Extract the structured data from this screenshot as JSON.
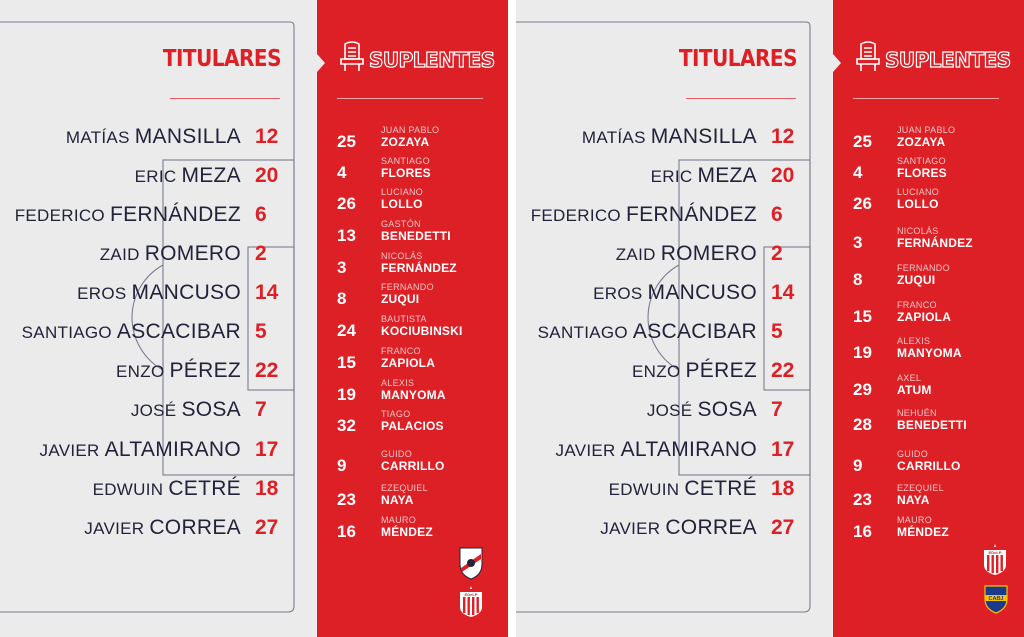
{
  "panels": [
    {
      "titulares_title": "TITULARES",
      "suplentes_title": "SUPLENTES",
      "starters": [
        {
          "first": "MATÍAS",
          "last": "MANSILLA",
          "number": "12"
        },
        {
          "first": "ERIC",
          "last": "MEZA",
          "number": "20"
        },
        {
          "first": "FEDERICO",
          "last": "FERNÁNDEZ",
          "number": "6"
        },
        {
          "first": "ZAID",
          "last": "ROMERO",
          "number": "2"
        },
        {
          "first": "EROS",
          "last": "MANCUSO",
          "number": "14"
        },
        {
          "first": "SANTIAGO",
          "last": "ASCACIBAR",
          "number": "5"
        },
        {
          "first": "ENZO",
          "last": "PÉREZ",
          "number": "22"
        },
        {
          "first": "JOSÉ",
          "last": "SOSA",
          "number": "7"
        },
        {
          "first": "JAVIER",
          "last": "ALTAMIRANO",
          "number": "17"
        },
        {
          "first": "EDWUIN",
          "last": "CETRÉ",
          "number": "18"
        },
        {
          "first": "JAVIER",
          "last": "CORREA",
          "number": "27"
        }
      ],
      "subs": [
        {
          "number": "25",
          "first": "JUAN PABLO",
          "last": "ZOZAYA"
        },
        {
          "number": "4",
          "first": "SANTIAGO",
          "last": "FLORES"
        },
        {
          "number": "26",
          "first": "LUCIANO",
          "last": "LOLLO"
        },
        {
          "number": "13",
          "first": "GASTÓN",
          "last": "BENEDETTI"
        },
        {
          "number": "3",
          "first": "NICOLÁS",
          "last": "FERNÁNDEZ"
        },
        {
          "number": "8",
          "first": "FERNANDO",
          "last": "ZUQUI"
        },
        {
          "number": "24",
          "first": "BAUTISTA",
          "last": "KOCIUBINSKI"
        },
        {
          "number": "15",
          "first": "FRANCO",
          "last": "ZAPIOLA"
        },
        {
          "number": "19",
          "first": "ALEXIS",
          "last": "MANYOMA"
        },
        {
          "number": "32",
          "first": "TIAGO",
          "last": "PALACIOS"
        },
        {
          "number": "9",
          "first": "GUIDO",
          "last": "CARRILLO"
        },
        {
          "number": "23",
          "first": "EZEQUIEL",
          "last": "NAYA"
        },
        {
          "number": "16",
          "first": "MAURO",
          "last": "MÉNDEZ"
        }
      ],
      "crests": [
        {
          "kind": "river-plate-crest"
        },
        {
          "kind": "estudiantes-crest",
          "text": "EDeLP"
        }
      ]
    },
    {
      "titulares_title": "TITULARES",
      "suplentes_title": "SUPLENTES",
      "starters": [
        {
          "first": "MATÍAS",
          "last": "MANSILLA",
          "number": "12"
        },
        {
          "first": "ERIC",
          "last": "MEZA",
          "number": "20"
        },
        {
          "first": "FEDERICO",
          "last": "FERNÁNDEZ",
          "number": "6"
        },
        {
          "first": "ZAID",
          "last": "ROMERO",
          "number": "2"
        },
        {
          "first": "EROS",
          "last": "MANCUSO",
          "number": "14"
        },
        {
          "first": "SANTIAGO",
          "last": "ASCACIBAR",
          "number": "5"
        },
        {
          "first": "ENZO",
          "last": "PÉREZ",
          "number": "22"
        },
        {
          "first": "JOSÉ",
          "last": "SOSA",
          "number": "7"
        },
        {
          "first": "JAVIER",
          "last": "ALTAMIRANO",
          "number": "17"
        },
        {
          "first": "EDWUIN",
          "last": "CETRÉ",
          "number": "18"
        },
        {
          "first": "JAVIER",
          "last": "CORREA",
          "number": "27"
        }
      ],
      "subs": [
        {
          "number": "25",
          "first": "JUAN PABLO",
          "last": "ZOZAYA"
        },
        {
          "number": "4",
          "first": "SANTIAGO",
          "last": "FLORES"
        },
        {
          "number": "26",
          "first": "LUCIANO",
          "last": "LOLLO"
        },
        {
          "number": "3",
          "first": "NICOLÁS",
          "last": "FERNÁNDEZ"
        },
        {
          "number": "8",
          "first": "FERNANDO",
          "last": "ZUQUI"
        },
        {
          "number": "15",
          "first": "FRANCO",
          "last": "ZAPIOLA"
        },
        {
          "number": "19",
          "first": "ALEXIS",
          "last": "MANYOMA"
        },
        {
          "number": "29",
          "first": "AXEL",
          "last": "ATUM"
        },
        {
          "number": "28",
          "first": "NEHUÉN",
          "last": "BENEDETTI"
        },
        {
          "number": "9",
          "first": "GUIDO",
          "last": "CARRILLO"
        },
        {
          "number": "23",
          "first": "EZEQUIEL",
          "last": "NAYA"
        },
        {
          "number": "16",
          "first": "MAURO",
          "last": "MÉNDEZ"
        }
      ],
      "crests": [
        {
          "kind": "estudiantes-crest",
          "text": "EDeLP"
        },
        {
          "kind": "boca-juniors-crest",
          "text": "CABJ"
        }
      ]
    }
  ],
  "colors": {
    "red": "#dd1f26",
    "gray": "#ebebeb",
    "navy": "#22233a"
  }
}
